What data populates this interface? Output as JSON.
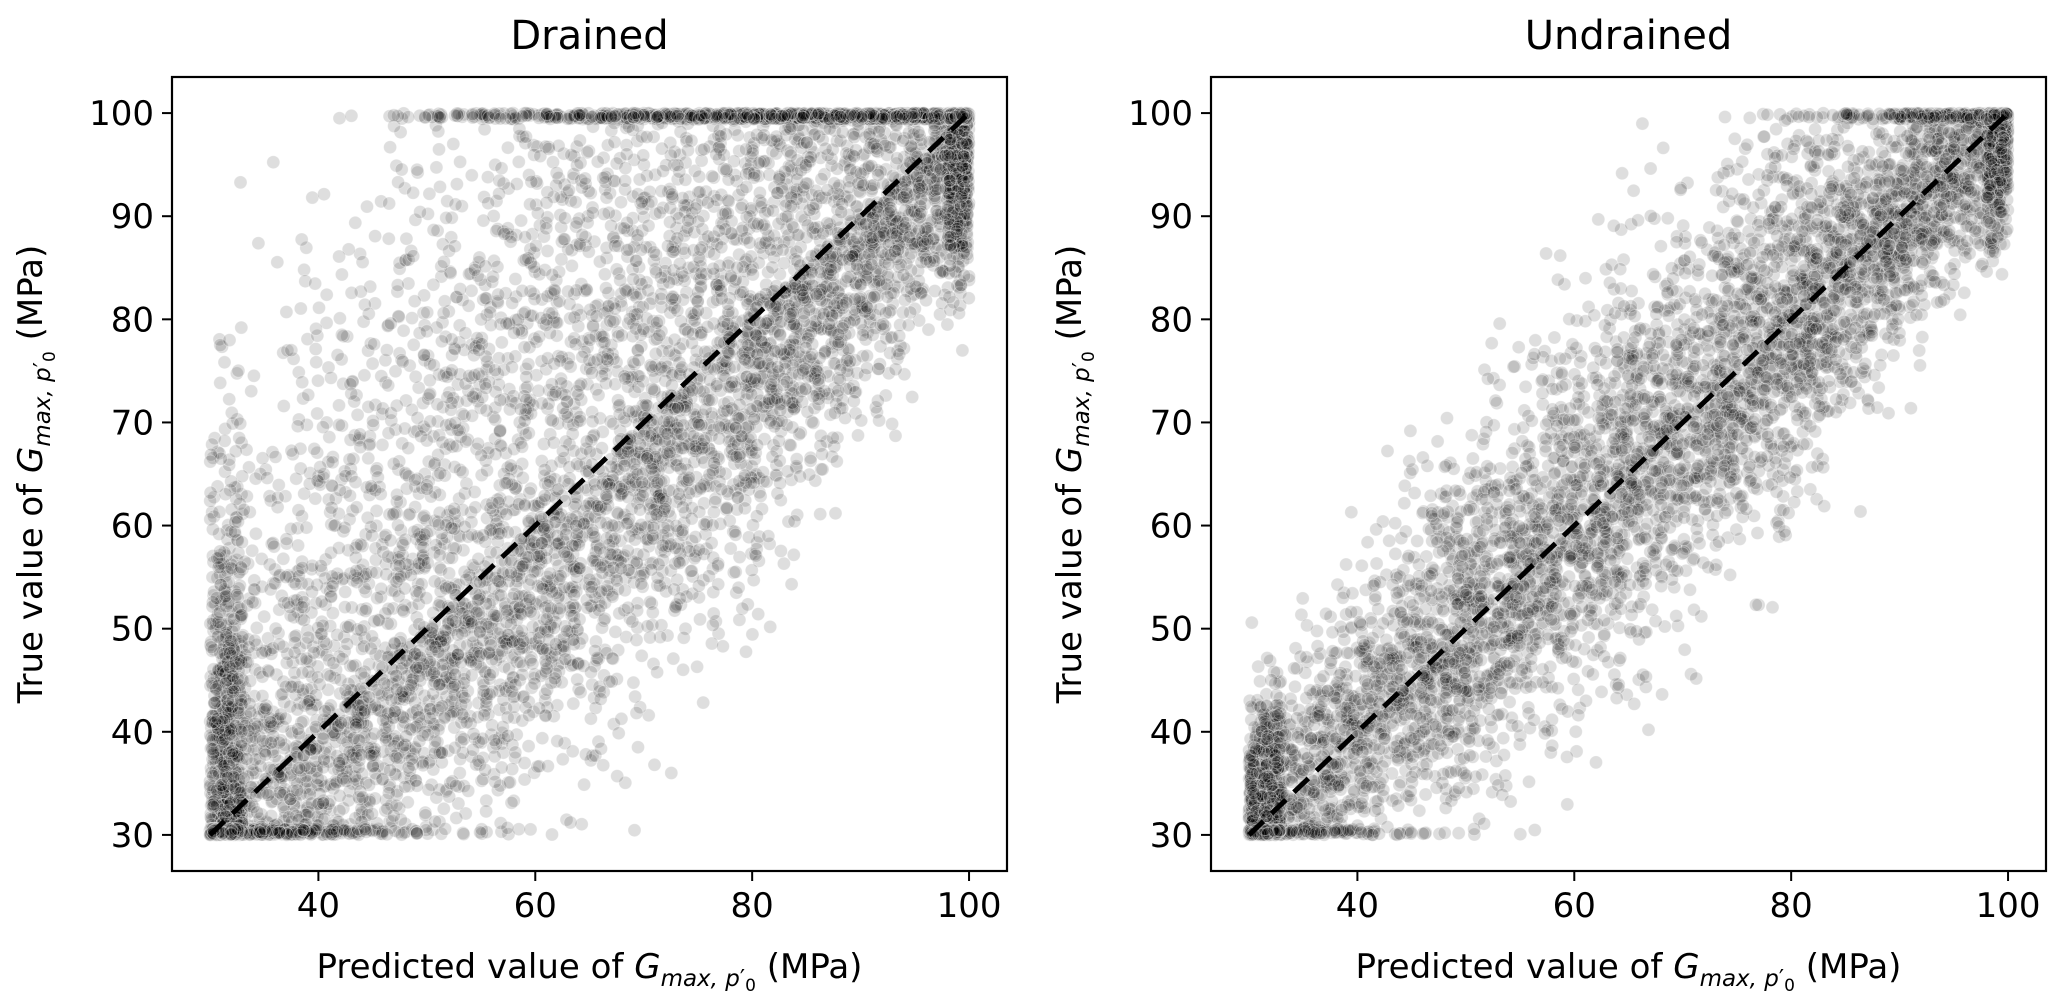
{
  "chart_data": [
    {
      "type": "scatter",
      "title": "Drained",
      "xlabel_prefix": "Predicted value of ",
      "ylabel_prefix": "True value of ",
      "label_symbol": "G",
      "label_subscript_a": "max, p",
      "label_subscript_prime": "′",
      "label_subscript_b": "0",
      "label_unit": " (MPa)",
      "xlim": [
        26.5,
        103.5
      ],
      "ylim": [
        26.5,
        103.5
      ],
      "xticks": [
        40,
        60,
        80,
        100
      ],
      "yticks": [
        30,
        40,
        50,
        60,
        70,
        80,
        90,
        100
      ],
      "grid": false,
      "reference_line": {
        "style": "dashed",
        "color": "#000000",
        "from": [
          30,
          30
        ],
        "to": [
          100,
          100
        ]
      },
      "point_color": "#000000",
      "point_alpha": 0.13,
      "clip": [
        30,
        100
      ],
      "spread_summary": {
        "y_spread_above": 26,
        "y_spread_below": 11,
        "count": 9000
      }
    },
    {
      "type": "scatter",
      "title": "Undrained",
      "xlabel_prefix": "Predicted value of ",
      "ylabel_prefix": "True value of ",
      "label_symbol": "G",
      "label_subscript_a": "max, p",
      "label_subscript_prime": "′",
      "label_subscript_b": "0",
      "label_unit": " (MPa)",
      "xlim": [
        26.5,
        103.5
      ],
      "ylim": [
        26.5,
        103.5
      ],
      "xticks": [
        40,
        60,
        80,
        100
      ],
      "yticks": [
        30,
        40,
        50,
        60,
        70,
        80,
        90,
        100
      ],
      "grid": false,
      "reference_line": {
        "style": "dashed",
        "color": "#000000",
        "from": [
          30,
          30
        ],
        "to": [
          100,
          100
        ]
      },
      "point_color": "#000000",
      "point_alpha": 0.13,
      "clip": [
        30,
        100
      ],
      "spread_summary": {
        "y_spread_above": 9,
        "y_spread_below": 8,
        "count": 7000
      }
    }
  ]
}
